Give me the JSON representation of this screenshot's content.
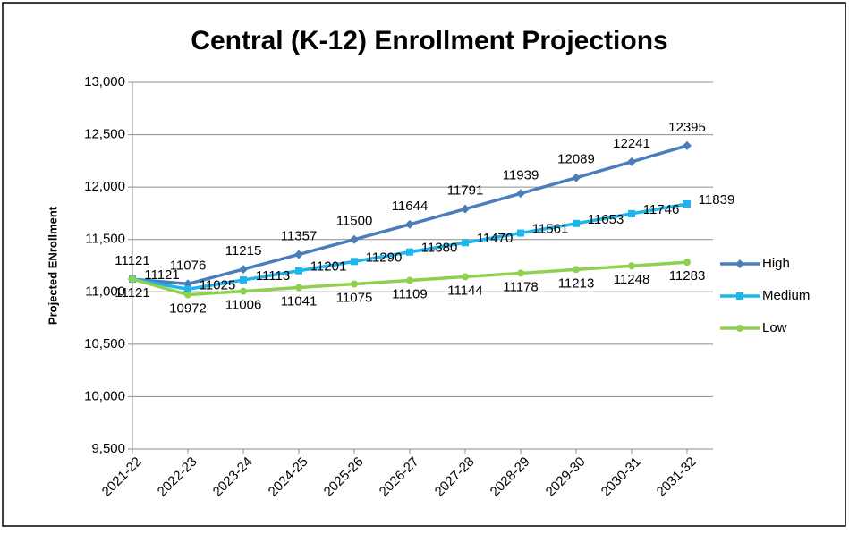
{
  "chart_data": {
    "type": "line",
    "title": "Central (K-12) Enrollment Projections",
    "y_label": "Projected ENrollment",
    "categories": [
      "2021-22",
      "2022-23",
      "2023-24",
      "2024-25",
      "2025-26",
      "2026-27",
      "2027-28",
      "2028-29",
      "2029-30",
      "2030-31",
      "2031-32"
    ],
    "series": [
      {
        "name": "High",
        "color": "#4a7ebb",
        "marker": "diamond",
        "values": [
          11121,
          11076,
          11215,
          11357,
          11500,
          11644,
          11791,
          11939,
          12089,
          12241,
          12395
        ]
      },
      {
        "name": "Medium",
        "color": "#1fb4ec",
        "marker": "square",
        "values": [
          11121,
          11025,
          11113,
          11201,
          11290,
          11380,
          11470,
          11561,
          11653,
          11746,
          11839
        ]
      },
      {
        "name": "Low",
        "color": "#8fd14f",
        "marker": "circle",
        "values": [
          11121,
          10972,
          11006,
          11041,
          11075,
          11109,
          11144,
          11178,
          11213,
          11248,
          11283
        ]
      }
    ],
    "ylim": [
      9500,
      13000
    ],
    "yticks": [
      {
        "value": 9500,
        "label": "9,500"
      },
      {
        "value": 10000,
        "label": "10,000"
      },
      {
        "value": 10500,
        "label": "10,500"
      },
      {
        "value": 11000,
        "label": "11,000"
      },
      {
        "value": 11500,
        "label": "11,500"
      },
      {
        "value": 12000,
        "label": "12,000"
      },
      {
        "value": 12500,
        "label": "12,500"
      },
      {
        "value": 13000,
        "label": "13,000"
      }
    ],
    "grid": true,
    "legend": "right",
    "data_labels": true
  }
}
